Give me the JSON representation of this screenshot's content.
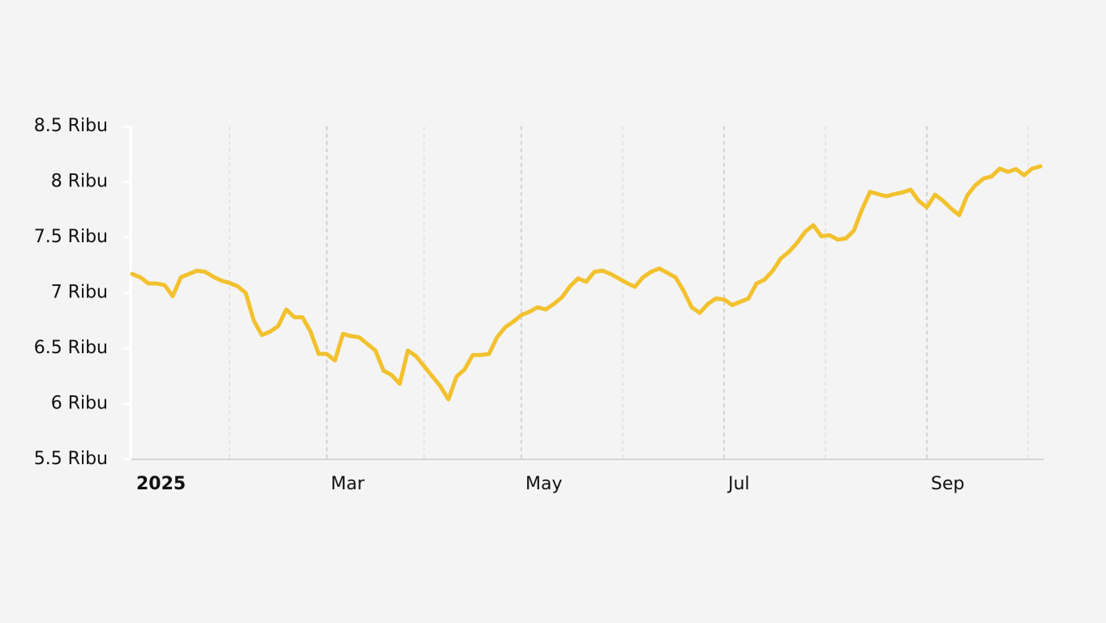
{
  "chart_data": {
    "type": "line",
    "categories": [
      "2025",
      null,
      null,
      null,
      null,
      null,
      null,
      null,
      null,
      null,
      null,
      null,
      null,
      null,
      null,
      null,
      null,
      null,
      null,
      null,
      null,
      null,
      null,
      null,
      "Mar",
      null,
      null,
      null,
      null,
      null,
      null,
      null,
      null,
      null,
      null,
      null,
      null,
      null,
      null,
      null,
      null,
      null,
      null,
      null,
      null,
      null,
      null,
      null,
      "May",
      null,
      null,
      null,
      null,
      null,
      null,
      null,
      null,
      null,
      null,
      null,
      null,
      null,
      null,
      null,
      null,
      null,
      null,
      null,
      null,
      null,
      null,
      null,
      null,
      "Jul",
      null,
      null,
      null,
      null,
      null,
      null,
      null,
      null,
      null,
      null,
      null,
      null,
      null,
      null,
      null,
      null,
      null,
      null,
      null,
      null,
      null,
      null,
      null,
      null,
      "Sep",
      null,
      null,
      null,
      null,
      null,
      null,
      null,
      null,
      null,
      null,
      null,
      null,
      null,
      null
    ],
    "values": [
      7170,
      7140,
      7085,
      7085,
      7070,
      6970,
      7140,
      7170,
      7200,
      7190,
      7145,
      7110,
      7090,
      7060,
      7000,
      6750,
      6620,
      6650,
      6700,
      6850,
      6780,
      6780,
      6650,
      6450,
      6450,
      6390,
      6630,
      6610,
      6600,
      6540,
      6480,
      6300,
      6260,
      6180,
      6480,
      6430,
      6340,
      6250,
      6160,
      6040,
      6245,
      6310,
      6440,
      6440,
      6450,
      6600,
      6690,
      6740,
      6800,
      6830,
      6870,
      6850,
      6900,
      6960,
      7060,
      7130,
      7100,
      7190,
      7200,
      7170,
      7130,
      7090,
      7055,
      7140,
      7190,
      7220,
      7180,
      7140,
      7020,
      6870,
      6820,
      6900,
      6950,
      6940,
      6890,
      6920,
      6950,
      7085,
      7120,
      7200,
      7310,
      7370,
      7450,
      7550,
      7610,
      7510,
      7520,
      7480,
      7490,
      7560,
      7750,
      7910,
      7890,
      7870,
      7890,
      7905,
      7930,
      7830,
      7770,
      7885,
      7830,
      7760,
      7700,
      7880,
      7970,
      8030,
      8050,
      8120,
      8090,
      8115,
      8060,
      8120,
      8140
    ],
    "color": "#f2c12e",
    "ylim": [
      5500,
      8500
    ],
    "yticks": [
      {
        "value": 5500,
        "label": "5.5 Ribu"
      },
      {
        "value": 6000,
        "label": "6 Ribu"
      },
      {
        "value": 6500,
        "label": "6.5 Ribu"
      },
      {
        "value": 7000,
        "label": "7 Ribu"
      },
      {
        "value": 7500,
        "label": "7.5 Ribu"
      },
      {
        "value": 8000,
        "label": "8 Ribu"
      },
      {
        "value": 8500,
        "label": "8.5 Ribu"
      }
    ]
  }
}
